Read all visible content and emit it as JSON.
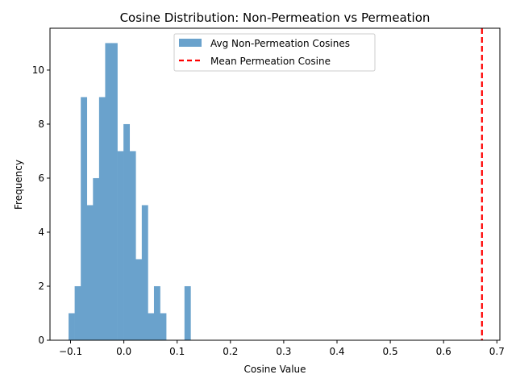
{
  "chart_data": {
    "type": "bar",
    "title": "Cosine Distribution: Non-Permeation vs Permeation",
    "xlabel": "Cosine Value",
    "ylabel": "Frequency",
    "xlim": [
      -0.1386,
      0.7056
    ],
    "ylim": [
      0,
      11.55
    ],
    "x_ticks": [
      -0.1,
      0.0,
      0.1,
      0.2,
      0.3,
      0.4,
      0.5,
      0.6,
      0.7
    ],
    "x_tick_labels": [
      "−0.1",
      "0.0",
      "0.1",
      "0.2",
      "0.3",
      "0.4",
      "0.5",
      "0.6",
      "0.7"
    ],
    "y_ticks": [
      0,
      2,
      4,
      6,
      8,
      10
    ],
    "y_tick_labels": [
      "0",
      "2",
      "4",
      "6",
      "8",
      "10"
    ],
    "grid": false,
    "legend_placement": "upper-center",
    "series": [
      {
        "name": "Avg Non-Permeation Cosines",
        "kind": "histogram",
        "color": "#6aa2cc",
        "bin_start": -0.10373,
        "bin_width": 0.0114462,
        "counts": [
          1,
          2,
          9,
          5,
          6,
          9,
          11,
          11,
          7,
          8,
          7,
          3,
          5,
          1,
          2,
          1,
          0,
          0,
          0,
          2
        ]
      },
      {
        "name": "Mean Permeation Cosine",
        "kind": "vline",
        "color": "#ff0000",
        "x": 0.672
      }
    ]
  }
}
